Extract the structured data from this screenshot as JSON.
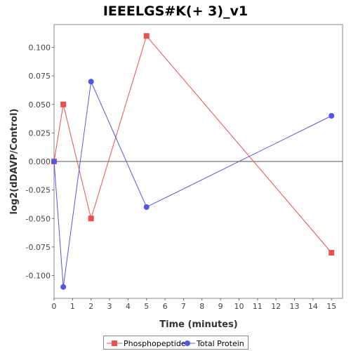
{
  "chart_data": {
    "type": "line",
    "title": "IEEELGS#K(+ 3)_v1",
    "xlabel": "Time (minutes)",
    "ylabel": "log2(dDAVP/Control)",
    "xlim": [
      0,
      15.6
    ],
    "ylim": [
      -0.12,
      0.12
    ],
    "xticks": [
      0,
      1,
      2,
      3,
      4,
      5,
      6,
      7,
      8,
      9,
      10,
      11,
      12,
      13,
      14,
      15
    ],
    "yticks": [
      -0.1,
      -0.075,
      -0.05,
      -0.025,
      0.0,
      0.025,
      0.05,
      0.075,
      0.1
    ],
    "ytick_labels": [
      "-0.100",
      "-0.075",
      "-0.050",
      "-0.025",
      "0.000",
      "0.025",
      "0.050",
      "0.075",
      "0.100"
    ],
    "zero_line": true,
    "grid": false,
    "legend_position": "bottom",
    "series": [
      {
        "name": "Phosphopeptide",
        "color": "#e8514f",
        "marker": "square",
        "x": [
          0,
          0.5,
          2,
          5,
          15
        ],
        "y": [
          0.0,
          0.05,
          -0.05,
          0.11,
          -0.08
        ]
      },
      {
        "name": "Total Protein",
        "color": "#5454e8",
        "marker": "circle",
        "x": [
          0,
          0.5,
          2,
          5,
          15
        ],
        "y": [
          0.0,
          -0.11,
          0.07,
          -0.04,
          0.04
        ]
      }
    ]
  }
}
